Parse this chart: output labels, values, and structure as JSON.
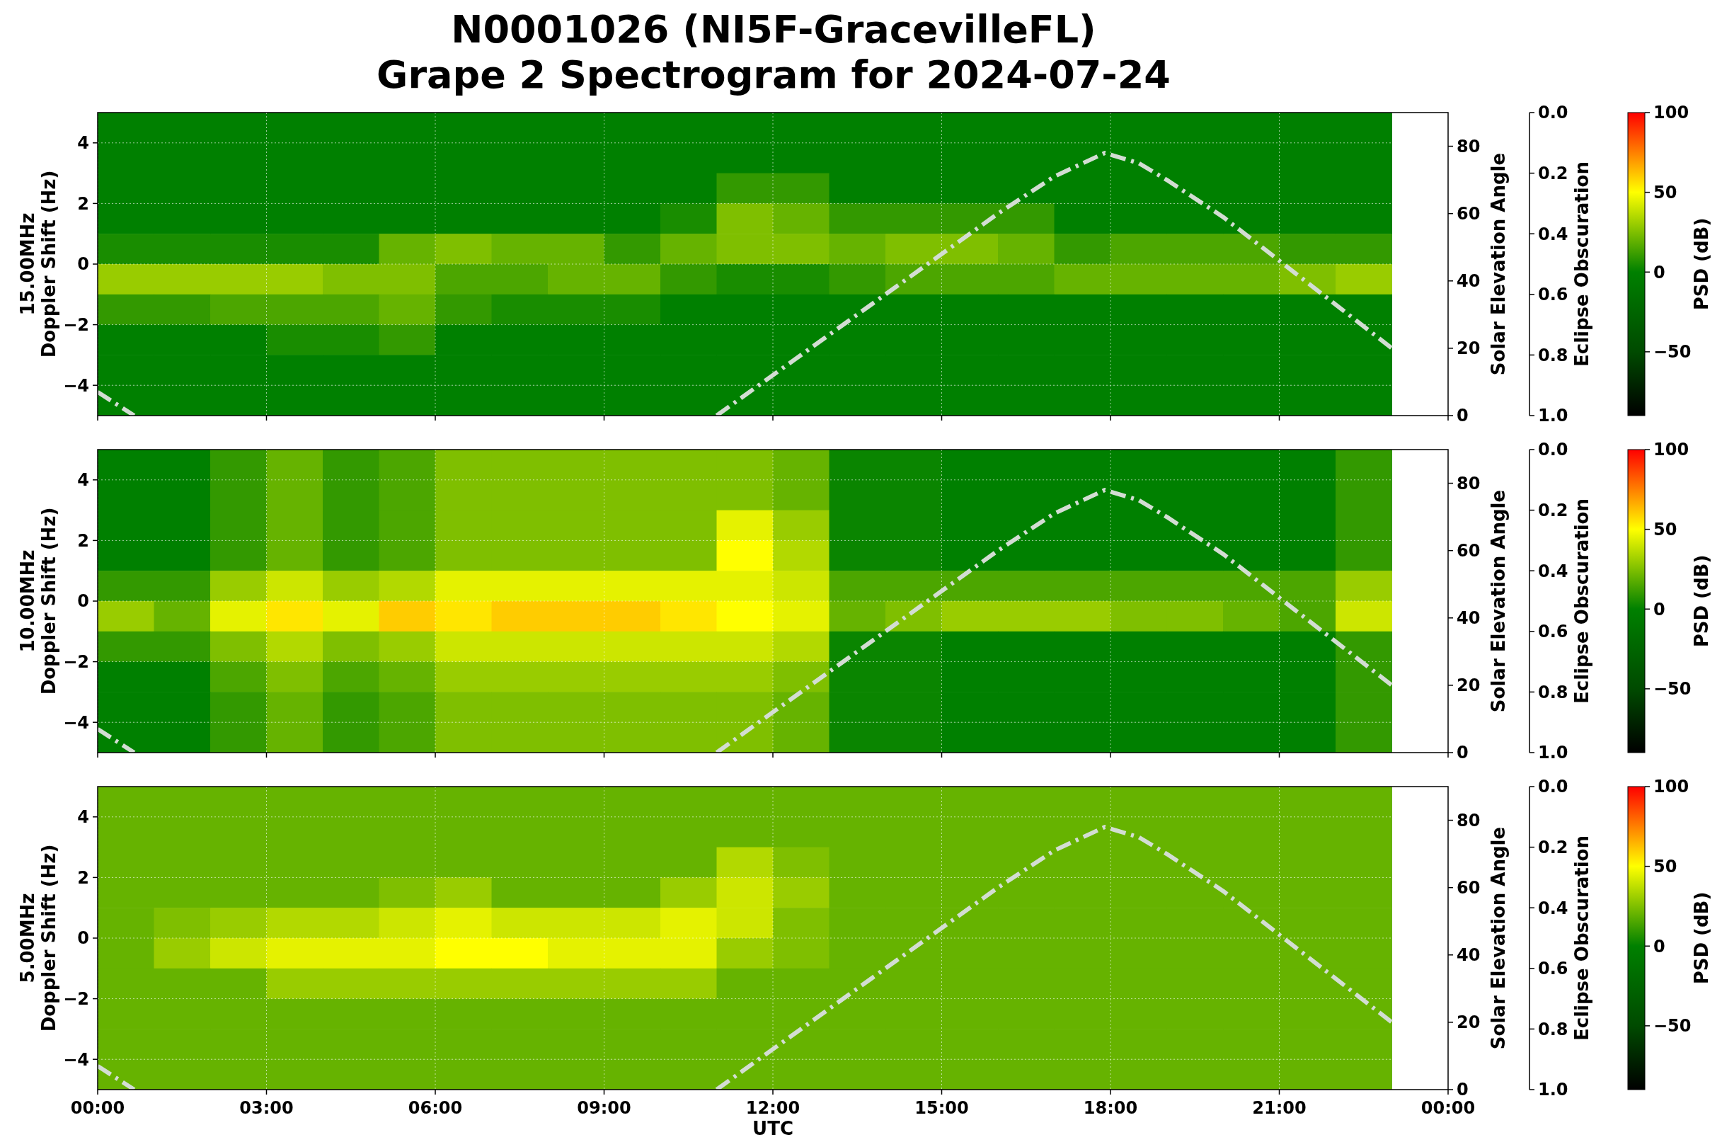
{
  "chart_data": [
    {
      "type": "heatmap",
      "title": "N0001026 (NI5F-GracevilleFL)\nGrape 2 Spectrogram for 2024-07-24",
      "ylabel": "15.00MHz\nDoppler Shift (Hz)",
      "y2label": "Solar Elevation Angle",
      "y3label": "Eclipse Obscuration",
      "clabel": "PSD (dB)",
      "grid": true,
      "tick_labels": "y",
      "x": [
        0.5,
        1.5,
        2.5,
        3.5,
        4.5,
        5.5,
        6.5,
        7.5,
        8.5,
        9.5,
        10.5,
        11.5,
        12.5,
        13.5,
        14.5,
        15.5,
        16.5,
        17.5,
        18.5,
        19.5,
        20.5,
        21.5,
        22.5
      ],
      "cells": [
        [
          0,
          0,
          0,
          0,
          0,
          0,
          0,
          0,
          0,
          0,
          0,
          0,
          0,
          0,
          0,
          0,
          0,
          0,
          0,
          0,
          0,
          0,
          0
        ],
        [
          0,
          0,
          0,
          0,
          0,
          0,
          0,
          0,
          0,
          0,
          0,
          0,
          0,
          0,
          0,
          0,
          0,
          0,
          0,
          0,
          0,
          0,
          0
        ],
        [
          0,
          0,
          0,
          0,
          0,
          0,
          0,
          0,
          0,
          0,
          0,
          10,
          10,
          0,
          0,
          0,
          0,
          0,
          0,
          0,
          0,
          0,
          0
        ],
        [
          0,
          0,
          0,
          0,
          0,
          0,
          0,
          0,
          0,
          0,
          5,
          25,
          20,
          10,
          10,
          10,
          10,
          0,
          0,
          0,
          0,
          0,
          0
        ],
        [
          5,
          5,
          5,
          5,
          5,
          20,
          25,
          20,
          20,
          10,
          20,
          25,
          25,
          20,
          25,
          25,
          20,
          10,
          15,
          15,
          15,
          10,
          10
        ],
        [
          30,
          30,
          30,
          30,
          25,
          25,
          15,
          15,
          20,
          20,
          10,
          5,
          5,
          10,
          15,
          15,
          15,
          20,
          20,
          20,
          20,
          25,
          30
        ],
        [
          10,
          10,
          15,
          15,
          15,
          20,
          10,
          5,
          5,
          5,
          0,
          0,
          0,
          0,
          0,
          0,
          0,
          0,
          0,
          0,
          0,
          0,
          0
        ],
        [
          0,
          0,
          0,
          5,
          5,
          10,
          0,
          0,
          0,
          0,
          0,
          0,
          0,
          0,
          0,
          0,
          0,
          0,
          0,
          0,
          0,
          0,
          0
        ],
        [
          0,
          0,
          0,
          0,
          0,
          0,
          0,
          0,
          0,
          0,
          0,
          0,
          0,
          0,
          0,
          0,
          0,
          0,
          0,
          0,
          0,
          0,
          0
        ],
        [
          0,
          0,
          0,
          0,
          0,
          0,
          0,
          0,
          0,
          0,
          0,
          0,
          0,
          0,
          0,
          0,
          0,
          0,
          0,
          0,
          0,
          0,
          0
        ]
      ],
      "clim": [
        -90,
        100
      ],
      "cticks": [
        -50,
        0,
        50,
        100
      ],
      "xlim": [
        0,
        24
      ],
      "xticks": [
        {
          "value": 0,
          "label": null
        },
        {
          "value": 3,
          "label": null
        },
        {
          "value": 6,
          "label": null
        },
        {
          "value": 9,
          "label": null
        },
        {
          "value": 12,
          "label": null
        },
        {
          "value": 15,
          "label": null
        },
        {
          "value": 18,
          "label": null
        },
        {
          "value": 21,
          "label": null
        },
        {
          "value": 24,
          "label": null
        }
      ],
      "ylim": [
        -5,
        5
      ],
      "yticks": [
        -4,
        -2,
        0,
        2,
        4
      ],
      "y2lim": [
        0,
        90
      ],
      "y2ticks": [
        0,
        20,
        40,
        60,
        80
      ],
      "y3lim": [
        1,
        0
      ],
      "y3ticks": [
        {
          "value": 0,
          "label": "0.0"
        },
        {
          "value": 0.2,
          "label": "0.2"
        },
        {
          "value": 0.4,
          "label": "0.4"
        },
        {
          "value": 0.6,
          "label": "0.6"
        },
        {
          "value": 0.8,
          "label": "0.8"
        },
        {
          "value": 1,
          "label": "1.0"
        }
      ],
      "series": [
        {
          "type": "line",
          "axis": "y2",
          "color": "#d3ddd3",
          "line_style": "dashdot",
          "x": [
            0,
            0.65,
            null,
            11,
            12,
            13,
            14,
            15,
            16,
            17,
            17.9,
            18.5,
            19,
            20,
            21,
            22,
            23
          ],
          "values": [
            7,
            0,
            null,
            0,
            12,
            24,
            36,
            48,
            60,
            71,
            78,
            75,
            70,
            59,
            46,
            33,
            20
          ]
        }
      ]
    },
    {
      "type": "heatmap",
      "ylabel": "10.00MHz\nDoppler Shift (Hz)",
      "y2label": "Solar Elevation Angle",
      "y3label": "Eclipse Obscuration",
      "clabel": "PSD (dB)",
      "grid": true,
      "tick_labels": "y",
      "x": [
        0.5,
        1.5,
        2.5,
        3.5,
        4.5,
        5.5,
        6.5,
        7.5,
        8.5,
        9.5,
        10.5,
        11.5,
        12.5,
        13.5,
        14.5,
        15.5,
        16.5,
        17.5,
        18.5,
        19.5,
        20.5,
        21.5,
        22.5
      ],
      "cells": [
        [
          0,
          0,
          10,
          20,
          10,
          15,
          25,
          25,
          25,
          25,
          25,
          25,
          20,
          2,
          2,
          0,
          0,
          0,
          0,
          0,
          0,
          0,
          10
        ],
        [
          0,
          0,
          10,
          20,
          10,
          15,
          25,
          25,
          25,
          25,
          25,
          25,
          20,
          2,
          2,
          0,
          0,
          0,
          0,
          0,
          0,
          0,
          10
        ],
        [
          0,
          0,
          10,
          20,
          10,
          15,
          25,
          25,
          25,
          25,
          25,
          45,
          30,
          2,
          2,
          0,
          0,
          0,
          0,
          0,
          0,
          0,
          10
        ],
        [
          0,
          0,
          10,
          20,
          10,
          15,
          25,
          25,
          25,
          25,
          25,
          50,
          35,
          2,
          2,
          0,
          0,
          0,
          0,
          0,
          0,
          0,
          10
        ],
        [
          10,
          10,
          30,
          40,
          30,
          35,
          45,
          45,
          45,
          45,
          45,
          45,
          40,
          15,
          15,
          15,
          15,
          15,
          15,
          15,
          15,
          15,
          30
        ],
        [
          30,
          20,
          45,
          55,
          45,
          60,
          55,
          60,
          60,
          60,
          55,
          50,
          45,
          20,
          25,
          30,
          30,
          30,
          25,
          25,
          20,
          15,
          40
        ],
        [
          10,
          10,
          25,
          35,
          25,
          30,
          40,
          40,
          40,
          40,
          40,
          40,
          35,
          2,
          2,
          0,
          0,
          0,
          0,
          0,
          0,
          0,
          10
        ],
        [
          0,
          0,
          15,
          25,
          15,
          20,
          30,
          30,
          30,
          30,
          30,
          30,
          25,
          2,
          2,
          0,
          0,
          0,
          0,
          0,
          0,
          0,
          10
        ],
        [
          0,
          0,
          10,
          20,
          10,
          15,
          25,
          25,
          25,
          25,
          25,
          25,
          20,
          2,
          2,
          0,
          0,
          0,
          0,
          0,
          0,
          0,
          10
        ],
        [
          0,
          0,
          10,
          20,
          10,
          15,
          25,
          25,
          25,
          25,
          25,
          25,
          20,
          2,
          2,
          0,
          0,
          0,
          0,
          0,
          0,
          0,
          10
        ]
      ],
      "clim": [
        -90,
        100
      ],
      "cticks": [
        -50,
        0,
        50,
        100
      ],
      "xlim": [
        0,
        24
      ],
      "xticks": [
        {
          "value": 0,
          "label": null
        },
        {
          "value": 3,
          "label": null
        },
        {
          "value": 6,
          "label": null
        },
        {
          "value": 9,
          "label": null
        },
        {
          "value": 12,
          "label": null
        },
        {
          "value": 15,
          "label": null
        },
        {
          "value": 18,
          "label": null
        },
        {
          "value": 21,
          "label": null
        },
        {
          "value": 24,
          "label": null
        }
      ],
      "ylim": [
        -5,
        5
      ],
      "yticks": [
        -4,
        -2,
        0,
        2,
        4
      ],
      "y2lim": [
        0,
        90
      ],
      "y2ticks": [
        0,
        20,
        40,
        60,
        80
      ],
      "y3lim": [
        1,
        0
      ],
      "y3ticks": [
        {
          "value": 0,
          "label": "0.0"
        },
        {
          "value": 0.2,
          "label": "0.2"
        },
        {
          "value": 0.4,
          "label": "0.4"
        },
        {
          "value": 0.6,
          "label": "0.6"
        },
        {
          "value": 0.8,
          "label": "0.8"
        },
        {
          "value": 1,
          "label": "1.0"
        }
      ],
      "series": [
        {
          "type": "line",
          "axis": "y2",
          "color": "#d3ddd3",
          "line_style": "dashdot",
          "x": [
            0,
            0.65,
            null,
            11,
            12,
            13,
            14,
            15,
            16,
            17,
            17.9,
            18.5,
            19,
            20,
            21,
            22,
            23
          ],
          "values": [
            7,
            0,
            null,
            0,
            12,
            24,
            36,
            48,
            60,
            71,
            78,
            75,
            70,
            59,
            46,
            33,
            20
          ]
        }
      ]
    },
    {
      "type": "heatmap",
      "xlabel": "UTC",
      "ylabel": "5.00MHz\nDoppler Shift (Hz)",
      "y2label": "Solar Elevation Angle",
      "y3label": "Eclipse Obscuration",
      "clabel": "PSD (dB)",
      "grid": true,
      "x": [
        0.5,
        1.5,
        2.5,
        3.5,
        4.5,
        5.5,
        6.5,
        7.5,
        8.5,
        9.5,
        10.5,
        11.5,
        12.5,
        13.5,
        14.5,
        15.5,
        16.5,
        17.5,
        18.5,
        19.5,
        20.5,
        21.5,
        22.5
      ],
      "cells": [
        [
          20,
          20,
          20,
          20,
          20,
          20,
          20,
          20,
          20,
          20,
          20,
          20,
          20,
          20,
          20,
          20,
          20,
          20,
          20,
          20,
          20,
          20,
          20
        ],
        [
          20,
          20,
          20,
          20,
          20,
          20,
          20,
          20,
          20,
          20,
          20,
          20,
          20,
          20,
          20,
          20,
          20,
          20,
          20,
          20,
          20,
          20,
          20
        ],
        [
          20,
          20,
          20,
          20,
          20,
          20,
          20,
          20,
          20,
          20,
          20,
          35,
          25,
          20,
          20,
          20,
          20,
          20,
          20,
          20,
          20,
          20,
          20
        ],
        [
          20,
          20,
          20,
          20,
          20,
          25,
          30,
          20,
          20,
          20,
          30,
          40,
          30,
          20,
          20,
          20,
          20,
          20,
          20,
          20,
          20,
          20,
          20
        ],
        [
          20,
          25,
          30,
          35,
          35,
          40,
          45,
          40,
          40,
          40,
          45,
          40,
          25,
          20,
          20,
          20,
          20,
          20,
          20,
          20,
          20,
          20,
          20
        ],
        [
          20,
          30,
          40,
          45,
          45,
          45,
          50,
          50,
          45,
          45,
          45,
          30,
          25,
          20,
          20,
          20,
          20,
          20,
          20,
          20,
          20,
          20,
          20
        ],
        [
          20,
          20,
          20,
          30,
          30,
          30,
          30,
          30,
          30,
          30,
          30,
          20,
          20,
          20,
          20,
          20,
          20,
          20,
          20,
          20,
          20,
          20,
          20
        ],
        [
          20,
          20,
          20,
          20,
          20,
          20,
          20,
          20,
          20,
          20,
          20,
          20,
          20,
          20,
          20,
          20,
          20,
          20,
          20,
          20,
          20,
          20,
          20
        ],
        [
          20,
          20,
          20,
          20,
          20,
          20,
          20,
          20,
          20,
          20,
          20,
          20,
          20,
          20,
          20,
          20,
          20,
          20,
          20,
          20,
          20,
          20,
          20
        ],
        [
          20,
          20,
          20,
          20,
          20,
          20,
          20,
          20,
          20,
          20,
          20,
          20,
          20,
          20,
          20,
          20,
          20,
          20,
          20,
          20,
          20,
          20,
          20
        ]
      ],
      "clim": [
        -90,
        100
      ],
      "cticks": [
        -50,
        0,
        50,
        100
      ],
      "xlim": [
        0,
        24
      ],
      "xticks": [
        {
          "value": 0,
          "label": "00:00"
        },
        {
          "value": 3,
          "label": "03:00"
        },
        {
          "value": 6,
          "label": "06:00"
        },
        {
          "value": 9,
          "label": "09:00"
        },
        {
          "value": 12,
          "label": "12:00"
        },
        {
          "value": 15,
          "label": "15:00"
        },
        {
          "value": 18,
          "label": "18:00"
        },
        {
          "value": 21,
          "label": "21:00"
        },
        {
          "value": 24,
          "label": "00:00"
        }
      ],
      "ylim": [
        -5,
        5
      ],
      "yticks": [
        -4,
        -2,
        0,
        2,
        4
      ],
      "y2lim": [
        0,
        90
      ],
      "y2ticks": [
        0,
        20,
        40,
        60,
        80
      ],
      "y3lim": [
        1,
        0
      ],
      "y3ticks": [
        {
          "value": 0,
          "label": "0.0"
        },
        {
          "value": 0.2,
          "label": "0.2"
        },
        {
          "value": 0.4,
          "label": "0.4"
        },
        {
          "value": 0.6,
          "label": "0.6"
        },
        {
          "value": 0.8,
          "label": "0.8"
        },
        {
          "value": 1,
          "label": "1.0"
        }
      ],
      "series": [
        {
          "type": "line",
          "axis": "y2",
          "color": "#d3ddd3",
          "line_style": "dashdot",
          "x": [
            0,
            0.65,
            null,
            11,
            12,
            13,
            14,
            15,
            16,
            17,
            17.9,
            18.5,
            19,
            20,
            21,
            22,
            23
          ],
          "values": [
            7,
            0,
            null,
            0,
            12,
            24,
            36,
            48,
            60,
            71,
            78,
            75,
            70,
            59,
            46,
            33,
            20
          ]
        }
      ]
    }
  ]
}
